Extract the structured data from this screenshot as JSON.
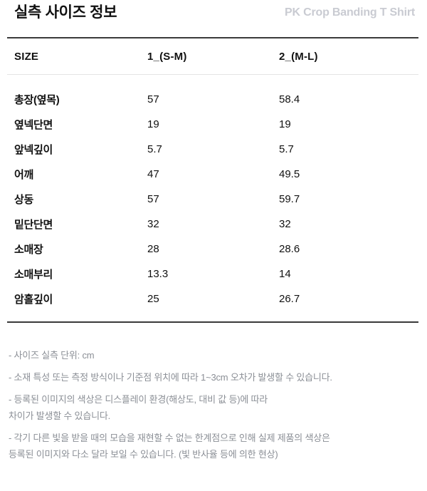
{
  "header": {
    "title": "실측 사이즈 정보",
    "product_name": "PK Crop Banding T Shirt"
  },
  "table": {
    "unit": "cm",
    "columns": [
      "SIZE",
      "1_(S-M)",
      "2_(M-L)"
    ],
    "rows": [
      {
        "label": "총장(옆목)",
        "values": [
          "57",
          "58.4"
        ]
      },
      {
        "label": "옆넥단면",
        "values": [
          "19",
          "19"
        ]
      },
      {
        "label": "앞넥깊이",
        "values": [
          "5.7",
          "5.7"
        ]
      },
      {
        "label": "어깨",
        "values": [
          "47",
          "49.5"
        ]
      },
      {
        "label": "상동",
        "values": [
          "57",
          "59.7"
        ]
      },
      {
        "label": "밑단단면",
        "values": [
          "32",
          "32"
        ]
      },
      {
        "label": "소매장",
        "values": [
          "28",
          "28.6"
        ]
      },
      {
        "label": "소매부리",
        "values": [
          "13.3",
          "14"
        ]
      },
      {
        "label": "암홀깊이",
        "values": [
          "25",
          "26.7"
        ]
      }
    ]
  },
  "footnotes": [
    {
      "lines": [
        "- 사이즈 실측 단위: cm"
      ]
    },
    {
      "lines": [
        "- 소재 특성 또는 측정 방식이나 기준점 위치에 따라 1~3cm 오차가 발생할 수 있습니다."
      ]
    },
    {
      "lines": [
        "- 등록된 이미지의 색상은 디스플레이 환경(해상도, 대비 값 등)에 따라",
        "차이가 발생할 수 있습니다."
      ]
    },
    {
      "lines": [
        "- 각기 다른 빛을 받을 때의 모습을 재현할 수 없는 한계점으로 인해 실제 제품의 색상은",
        "등록된 이미지와 다소 달라 보일 수 있습니다. (빛 반사율 등에 의한 현상)"
      ]
    }
  ],
  "colors": {
    "text": "#111111",
    "product_name_gray": "#c9cbd2",
    "footnote_gray": "#8b8f96",
    "rule_dark": "#3a3a3a",
    "rule_light": "#e4e4e4",
    "background": "#ffffff"
  }
}
